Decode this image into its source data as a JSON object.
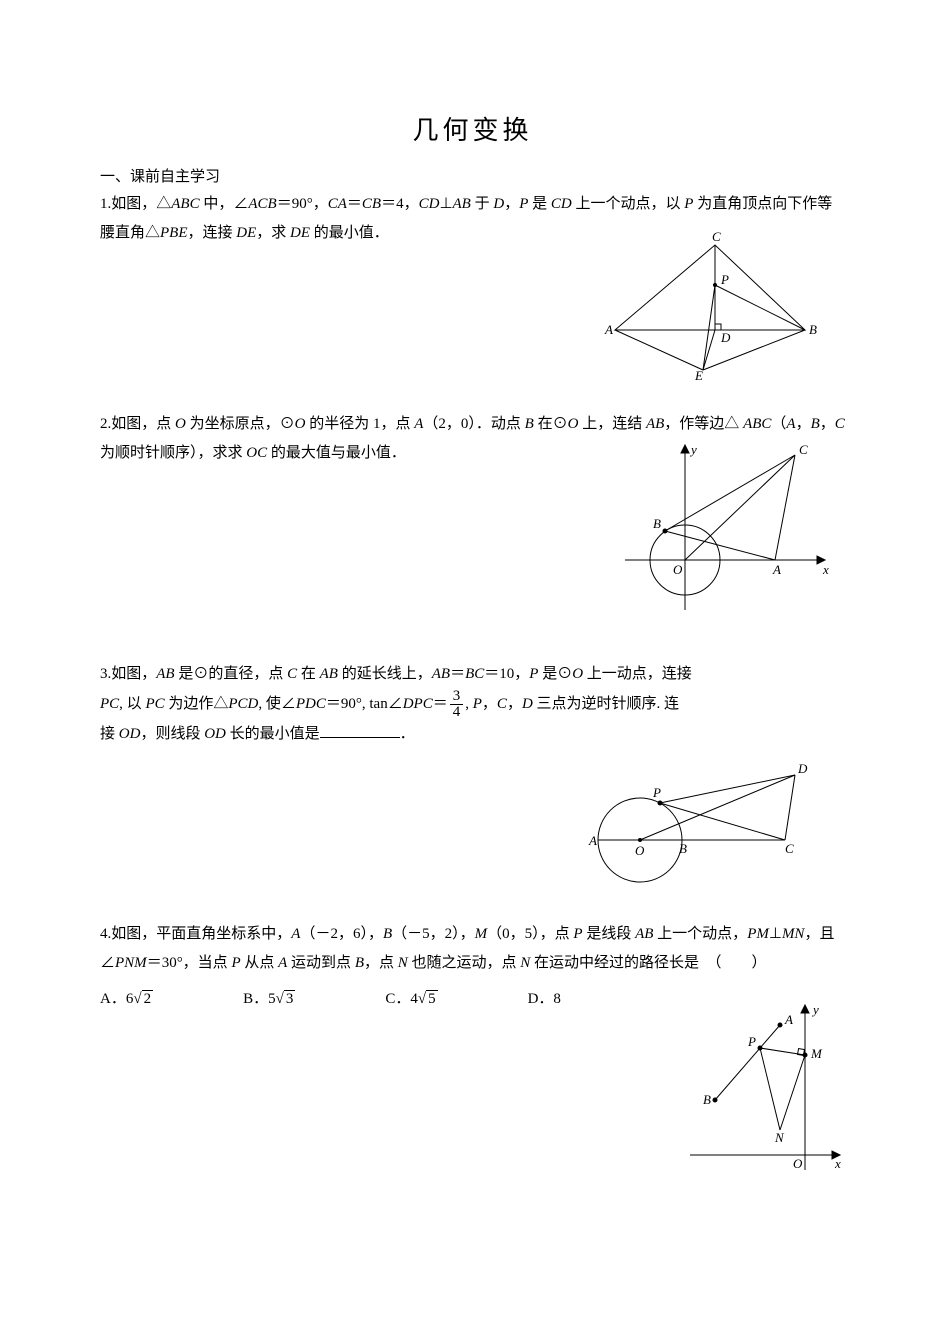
{
  "title": "几何变换",
  "section_header": "一、课前自主学习",
  "problems": {
    "p1": {
      "num": "1.",
      "text": "如图，△<span class=\"italic\">ABC</span> 中，∠<span class=\"italic\">ACB</span>＝90°，<span class=\"italic\">CA</span>＝<span class=\"italic\">CB</span>＝4，<span class=\"italic\">CD</span>⊥<span class=\"italic\">AB</span> 于 <span class=\"italic\">D</span>，<span class=\"italic\">P</span> 是 <span class=\"italic\">CD</span> 上一个动点，以 <span class=\"italic\">P</span> 为直角顶点向下作等腰直角△<span class=\"italic\">PBE</span>，连接 <span class=\"italic\">DE</span>，求 <span class=\"italic\">DE</span> 的最小值．"
    },
    "p2": {
      "num": "2.",
      "text": "如图，点 <span class=\"italic\">O</span> 为坐标原点，⊙<span class=\"italic\">O</span> 的半径为 1，点 <span class=\"italic\">A</span>（2，0）．动点 <span class=\"italic\">B</span> 在⊙<span class=\"italic\">O</span> 上，连结 <span class=\"italic\">AB</span>，作等边△ <span class=\"italic\">ABC</span>（<span class=\"italic\">A</span>，<span class=\"italic\">B</span>，<span class=\"italic\">C</span> 为顺时针顺序），求求 <span class=\"italic\">OC</span> 的最大值与最小值．"
    },
    "p3": {
      "num": "3.",
      "text_part1": "如图，<span class=\"italic\">AB</span> 是⊙的直径，点 <span class=\"italic\">C</span> 在 <span class=\"italic\">AB</span> 的延长线上，<span class=\"italic\">AB</span>＝<span class=\"italic\">BC</span>＝10，<span class=\"italic\">P</span> 是⊙<span class=\"italic\">O</span> 上一动点，连接",
      "text_part2": "<span class=\"italic\">PC</span>, 以 <span class=\"italic\">PC</span> 为边作△<span class=\"italic\">PCD</span>, 使∠<span class=\"italic\">PDC</span>＝90°, tan∠<span class=\"italic\">DPC</span>＝",
      "frac_num": "3",
      "frac_den": "4",
      "text_part3": ", <span class=\"italic\">P</span>，<span class=\"italic\">C</span>，<span class=\"italic\">D</span> 三点为逆时针顺序. 连",
      "text_part4": "接 <span class=\"italic\">OD</span>，则线段 <span class=\"italic\">OD</span> 长的最小值是",
      "text_part5": "．"
    },
    "p4": {
      "num": "4.",
      "text": "如图，平面直角坐标系中，<span class=\"italic\">A</span>（－2，6），<span class=\"italic\">B</span>（－5，2），<span class=\"italic\">M</span>（0，5），点 <span class=\"italic\">P</span> 是线段 <span class=\"italic\">AB</span> 上一个动点，<span class=\"italic\">PM</span>⊥<span class=\"italic\">MN</span>，且∠<span class=\"italic\">PNM</span>＝30°，当点 <span class=\"italic\">P</span> 从点 <span class=\"italic\">A</span> 运动到点 <span class=\"italic\">B</span>，点 <span class=\"italic\">N</span> 也随之运动，点 <span class=\"italic\">N</span> 在运动中经过的路径长是　（　　）",
      "choices": {
        "A": "A．6",
        "A_rad": "2",
        "B": "B．5",
        "B_rad": "3",
        "C": "C．4",
        "C_rad": "5",
        "D": "D．8"
      }
    }
  },
  "figures": {
    "fig1": {
      "labels": {
        "A": "A",
        "B": "B",
        "C": "C",
        "D": "D",
        "E": "E",
        "P": "P"
      },
      "stroke": "#000000",
      "stroke_width": 1
    },
    "fig2": {
      "labels": {
        "O": "O",
        "A": "A",
        "B": "B",
        "C": "C",
        "x": "x",
        "y": "y"
      },
      "stroke": "#000000",
      "stroke_width": 1
    },
    "fig3": {
      "labels": {
        "A": "A",
        "O": "O",
        "B": "B",
        "C": "C",
        "P": "P",
        "D": "D"
      },
      "stroke": "#000000",
      "stroke_width": 1
    },
    "fig4": {
      "labels": {
        "O": "O",
        "A": "A",
        "B": "B",
        "M": "M",
        "N": "N",
        "P": "P",
        "x": "x",
        "y": "y"
      },
      "stroke": "#000000",
      "stroke_width": 1
    }
  }
}
